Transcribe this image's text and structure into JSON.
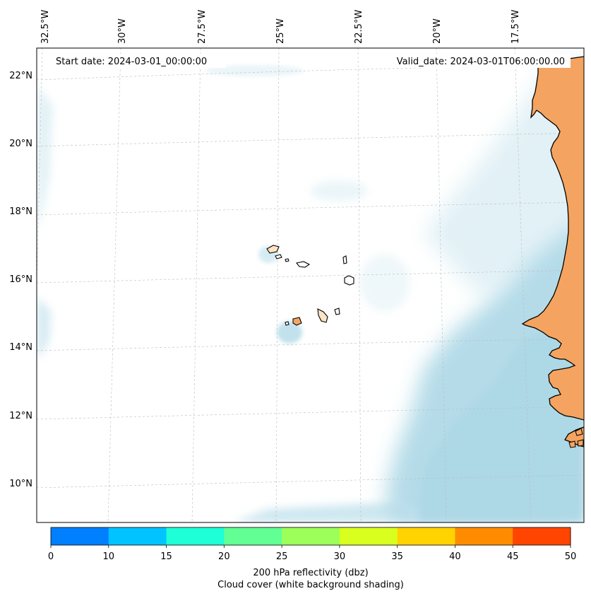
{
  "map": {
    "start_date": "Start date: 2024-03-01_00:00:00",
    "valid_date": "Valid_date: 2024-03-01T06:00:00.00",
    "lon_labels": [
      "32.5°W",
      "30°W",
      "27.5°W",
      "25°W",
      "22.5°W",
      "20°W",
      "17.5°W"
    ],
    "lat_labels": [
      "22°N",
      "20°N",
      "18°N",
      "16°N",
      "14°N",
      "12°N",
      "10°N"
    ],
    "gridlines": true,
    "colors": {
      "land": "#f4a460",
      "cloud": "#add8e6",
      "coastline": "#000000"
    }
  },
  "colorbar": {
    "ticks": [
      "0",
      "10",
      "15",
      "20",
      "25",
      "30",
      "35",
      "40",
      "45",
      "50"
    ],
    "colors": [
      "#007fff",
      "#00c3ff",
      "#1effd8",
      "#62ff94",
      "#9cff5a",
      "#d8ff1e",
      "#ffd300",
      "#ff8c00",
      "#ff4500"
    ],
    "label_line1": "200 hPa reflectivity (dbz)",
    "label_line2": "Cloud cover (white background shading)"
  }
}
